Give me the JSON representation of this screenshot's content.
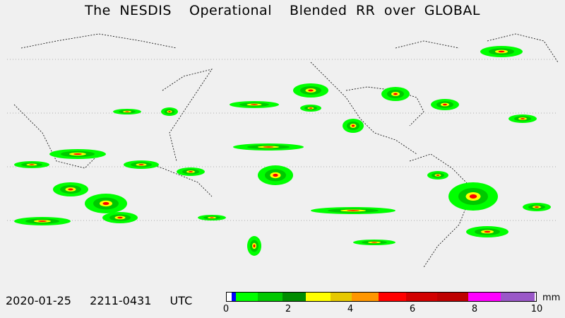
{
  "title": "The NESDIS  Operational  Blended RR over GLOBAL",
  "timestamp": "2020-01-25  2211-0431  UTC",
  "colorbar": {
    "unit": "mm",
    "min": 0,
    "max": 10,
    "ticks": [
      "0",
      "2",
      "4",
      "6",
      "8",
      "10"
    ],
    "bins": [
      {
        "from": 0,
        "to": 0.15,
        "color": "#ffffff"
      },
      {
        "from": 0.15,
        "to": 0.3,
        "color": "#0000ff"
      },
      {
        "from": 0.3,
        "to": 1.0,
        "color": "#00ff00"
      },
      {
        "from": 1.0,
        "to": 1.8,
        "color": "#00c800"
      },
      {
        "from": 1.8,
        "to": 2.55,
        "color": "#008c00"
      },
      {
        "from": 2.55,
        "to": 3.35,
        "color": "#ffff00"
      },
      {
        "from": 3.35,
        "to": 4.05,
        "color": "#e6c800"
      },
      {
        "from": 4.05,
        "to": 4.9,
        "color": "#ff9600"
      },
      {
        "from": 4.9,
        "to": 5.8,
        "color": "#ff0000"
      },
      {
        "from": 5.8,
        "to": 6.8,
        "color": "#d20000"
      },
      {
        "from": 6.8,
        "to": 7.8,
        "color": "#be0000"
      },
      {
        "from": 7.8,
        "to": 8.85,
        "color": "#ff00ff"
      },
      {
        "from": 8.85,
        "to": 9.95,
        "color": "#9a58c8"
      }
    ]
  }
}
